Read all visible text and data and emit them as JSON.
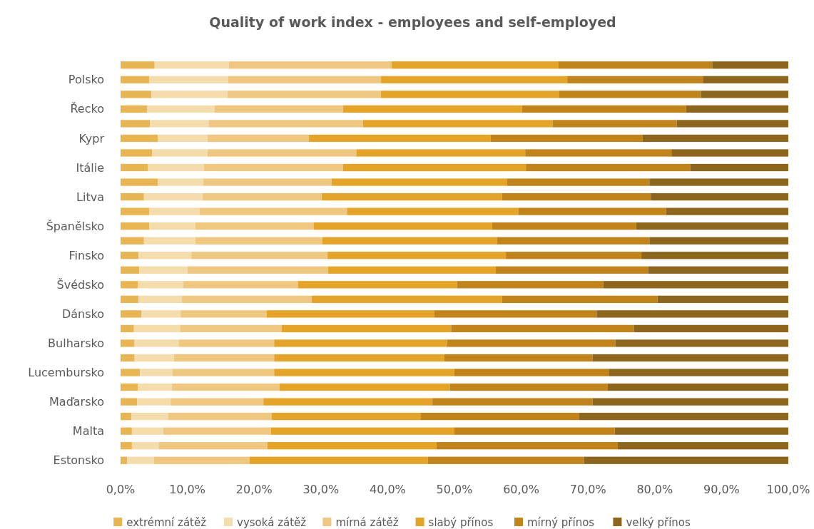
{
  "chart_data": {
    "type": "bar",
    "orientation": "horizontal",
    "stacked": true,
    "title": "Quality of work index - employees and self-employed",
    "categories": [
      null,
      "Polsko",
      null,
      "Řecko",
      null,
      "Kypr",
      null,
      "Itálie",
      null,
      "Litva",
      null,
      "Španělsko",
      null,
      "Finsko",
      null,
      "Švédsko",
      null,
      "Dánsko",
      null,
      "Bulharsko",
      null,
      "Lucembursko",
      null,
      "Maďarsko",
      null,
      "Malta",
      null,
      "Estonsko"
    ],
    "series": [
      {
        "name": "extrémní zátěž",
        "color": "#e9b550",
        "values": [
          5.1,
          4.3,
          4.6,
          4.0,
          4.4,
          5.6,
          4.7,
          4.1,
          5.6,
          3.5,
          4.3,
          4.3,
          3.5,
          2.7,
          2.8,
          2.6,
          2.7,
          3.1,
          2.0,
          2.1,
          2.1,
          2.9,
          2.6,
          2.5,
          1.6,
          1.7,
          1.7,
          1.0
        ]
      },
      {
        "name": "vysoká zátěž",
        "color": "#f5dcab",
        "values": [
          11.1,
          11.8,
          11.4,
          10.1,
          8.8,
          7.4,
          8.3,
          8.4,
          6.8,
          8.8,
          7.5,
          6.9,
          7.7,
          7.9,
          7.2,
          6.8,
          6.5,
          5.9,
          6.9,
          6.6,
          5.9,
          4.9,
          5.1,
          5.0,
          5.5,
          4.7,
          4.0,
          4.0
        ]
      },
      {
        "name": "mírná zátěž",
        "color": "#efc77e",
        "values": [
          24.4,
          22.9,
          23.0,
          19.2,
          23.1,
          15.2,
          22.3,
          20.8,
          19.2,
          17.8,
          22.1,
          17.7,
          19.0,
          20.4,
          21.1,
          17.2,
          19.4,
          12.9,
          15.2,
          14.3,
          15.0,
          15.2,
          16.1,
          13.9,
          15.5,
          16.1,
          16.3,
          14.3
        ]
      },
      {
        "name": "slabý přínos",
        "color": "#e5a426",
        "values": [
          25.0,
          27.9,
          26.7,
          26.8,
          28.4,
          27.2,
          25.3,
          27.4,
          26.3,
          27.0,
          25.7,
          26.7,
          26.2,
          26.7,
          25.1,
          23.8,
          28.5,
          25.1,
          25.4,
          25.9,
          25.5,
          27.0,
          25.5,
          25.3,
          22.3,
          27.5,
          25.3,
          26.7
        ]
      },
      {
        "name": "mírný přínos",
        "color": "#c28418",
        "values": [
          23.0,
          20.3,
          21.2,
          24.6,
          18.6,
          22.8,
          21.9,
          24.6,
          21.3,
          22.3,
          22.1,
          21.6,
          22.8,
          20.3,
          22.8,
          21.9,
          23.3,
          24.3,
          27.4,
          25.2,
          22.2,
          23.1,
          23.6,
          24.0,
          23.8,
          24.0,
          27.1,
          23.4
        ]
      },
      {
        "name": "velký přínos",
        "color": "#8d661c",
        "values": [
          11.4,
          12.8,
          13.1,
          15.3,
          16.7,
          21.8,
          17.5,
          14.7,
          20.8,
          20.6,
          18.3,
          22.8,
          20.8,
          22.0,
          21.0,
          27.7,
          19.6,
          28.7,
          23.1,
          25.9,
          29.3,
          26.9,
          27.1,
          29.3,
          31.3,
          26.0,
          25.6,
          30.6
        ]
      }
    ],
    "xlim": [
      0,
      100
    ],
    "xticks": [
      {
        "value": 0,
        "label": "0,0%"
      },
      {
        "value": 10,
        "label": "10,0%"
      },
      {
        "value": 20,
        "label": "20,0%"
      },
      {
        "value": 30,
        "label": "30,0%"
      },
      {
        "value": 40,
        "label": "40,0%"
      },
      {
        "value": 50,
        "label": "50,0%"
      },
      {
        "value": 60,
        "label": "60,0%"
      },
      {
        "value": 70,
        "label": "70,0%"
      },
      {
        "value": 80,
        "label": "80,0%"
      },
      {
        "value": 90,
        "label": "90,0%"
      },
      {
        "value": 100,
        "label": "100,0%"
      }
    ],
    "legend": "bottom"
  }
}
